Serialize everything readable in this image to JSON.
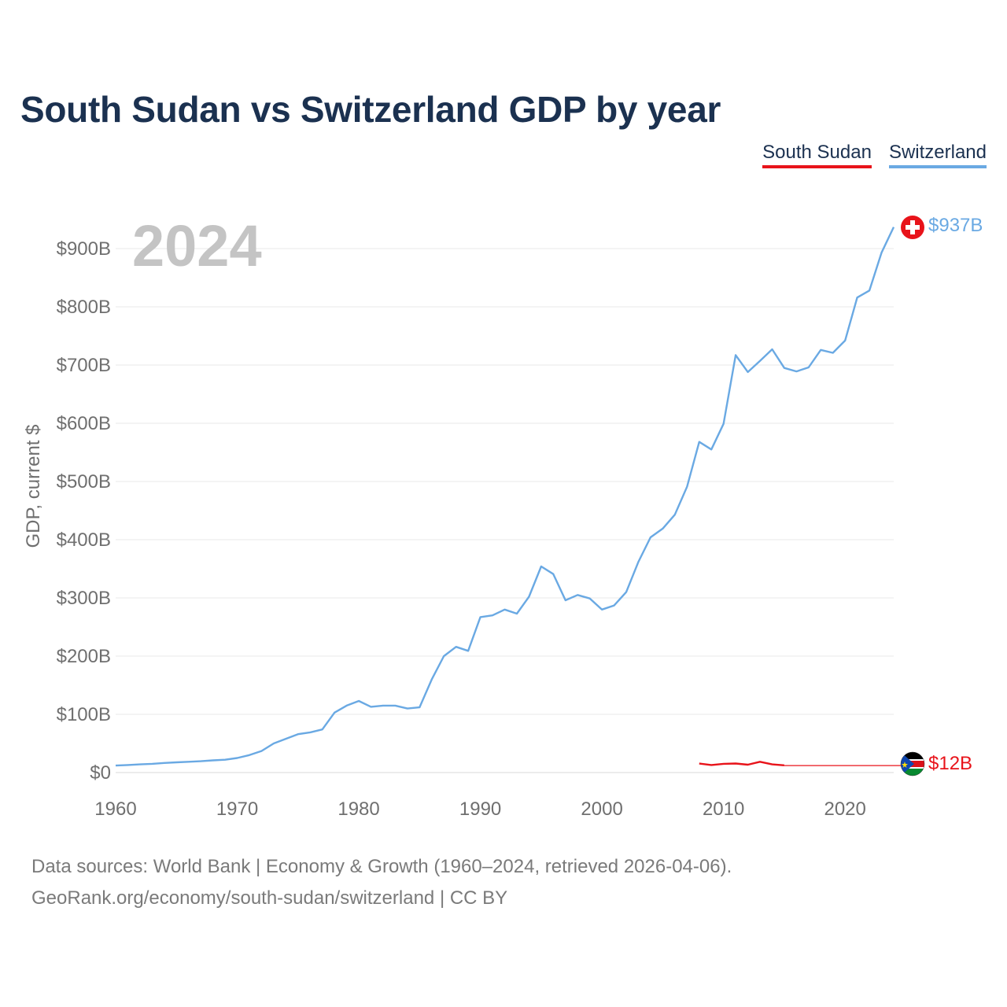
{
  "title": "South Sudan vs Switzerland GDP by year",
  "legend": {
    "south_sudan": "South Sudan",
    "switzerland": "Switzerland"
  },
  "year_display": "2024",
  "footer": {
    "line1": "Data sources: World Bank | Economy & Growth (1960–2024, retrieved 2026-04-06).",
    "line2": "GeoRank.org/economy/south-sudan/switzerland | CC BY"
  },
  "chart_data": {
    "type": "line",
    "title": "South Sudan vs Switzerland GDP by year",
    "xlabel": "",
    "ylabel": "GDP, current $",
    "xlim": [
      1960,
      2024
    ],
    "ylim": [
      0,
      900
    ],
    "x_ticks": [
      1960,
      1970,
      1980,
      1990,
      2000,
      2010,
      2020
    ],
    "y_ticks": [
      0,
      100,
      200,
      300,
      400,
      500,
      600,
      700,
      800,
      900
    ],
    "y_tick_labels": [
      "$0",
      "$100B",
      "$200B",
      "$300B",
      "$400B",
      "$500B",
      "$600B",
      "$700B",
      "$800B",
      "$900B"
    ],
    "units": "billions of current US$",
    "series": [
      {
        "name": "Switzerland",
        "color": "#6aa9e3",
        "end_label": "$937B",
        "x": [
          1960,
          1961,
          1962,
          1963,
          1964,
          1965,
          1966,
          1967,
          1968,
          1969,
          1970,
          1971,
          1972,
          1973,
          1974,
          1975,
          1976,
          1977,
          1978,
          1979,
          1980,
          1981,
          1982,
          1983,
          1984,
          1985,
          1986,
          1987,
          1988,
          1989,
          1990,
          1991,
          1992,
          1993,
          1994,
          1995,
          1996,
          1997,
          1998,
          1999,
          2000,
          2001,
          2002,
          2003,
          2004,
          2005,
          2006,
          2007,
          2008,
          2009,
          2010,
          2011,
          2012,
          2013,
          2014,
          2015,
          2016,
          2017,
          2018,
          2019,
          2020,
          2021,
          2022,
          2023,
          2024
        ],
        "y": [
          12,
          13,
          14,
          15,
          16.5,
          17.5,
          18.5,
          19.5,
          21,
          22,
          25,
          30,
          37,
          50,
          58,
          66,
          69,
          74,
          103,
          115,
          123,
          113,
          115,
          115,
          110,
          112,
          160,
          200,
          216,
          209,
          267,
          270,
          280,
          273,
          302,
          354,
          341,
          296,
          305,
          299,
          280,
          287,
          310,
          362,
          404,
          419,
          443,
          491,
          568,
          555,
          599,
          717,
          688,
          707,
          727,
          695,
          689,
          696,
          726,
          721,
          742,
          816,
          828,
          893,
          937
        ]
      },
      {
        "name": "South Sudan",
        "color": "#e8131a",
        "end_label": "$12B",
        "x": [
          2008,
          2009,
          2010,
          2011,
          2012,
          2013,
          2014,
          2015
        ],
        "y": [
          15.5,
          13,
          15,
          15.5,
          13.5,
          18.5,
          14,
          12.5
        ],
        "projection": {
          "from_year": 2015,
          "to_year": 2024,
          "value": 12
        }
      }
    ]
  }
}
